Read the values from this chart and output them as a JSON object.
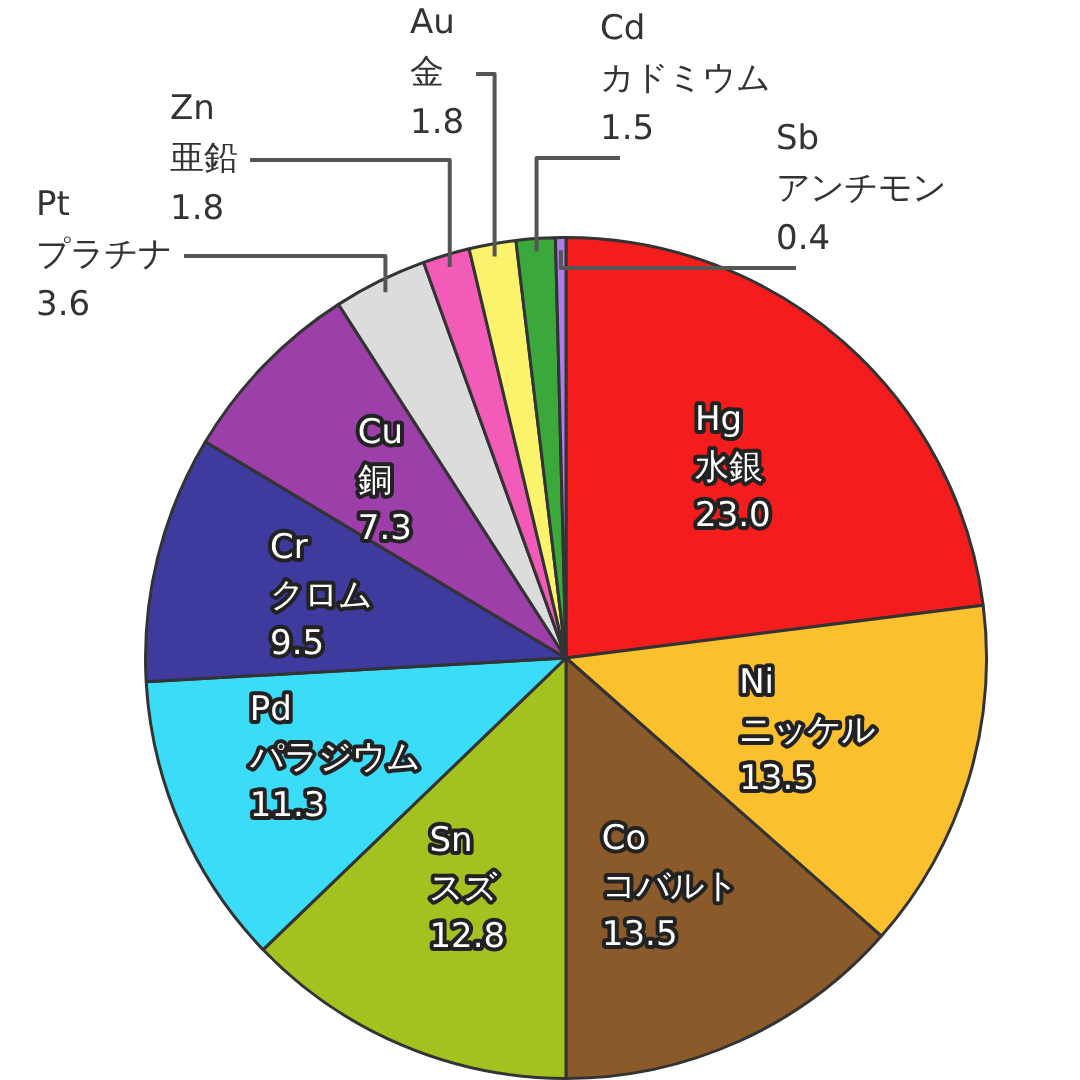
{
  "chart_data": {
    "type": "pie",
    "categories": [
      "Hg 水銀",
      "Ni ニッケル",
      "Co コバルト",
      "Sn スズ",
      "Pd パラジウム",
      "Cr クロム",
      "Cu 銅",
      "Pt プラチナ",
      "Zn 亜鉛",
      "Au 金",
      "Cd カドミウム",
      "Sb アンチモン"
    ],
    "values": [
      23.0,
      13.5,
      13.5,
      12.8,
      11.3,
      9.5,
      7.3,
      3.6,
      1.8,
      1.8,
      1.5,
      0.4
    ],
    "value_labels": [
      "23.0",
      "13.5",
      "13.5",
      "12.8",
      "11.3",
      "9.5",
      "7.3",
      "3.6",
      "1.8",
      "1.8",
      "1.5",
      "0.4"
    ],
    "colors": [
      "#f41c1c",
      "#fbc02d",
      "#8b5a2b",
      "#a4c21f",
      "#3adcf7",
      "#3e3a9e",
      "#9c3fa8",
      "#dcdcdc",
      "#f25cb8",
      "#fbf36b",
      "#3aa83a",
      "#b07ce8"
    ]
  }
}
